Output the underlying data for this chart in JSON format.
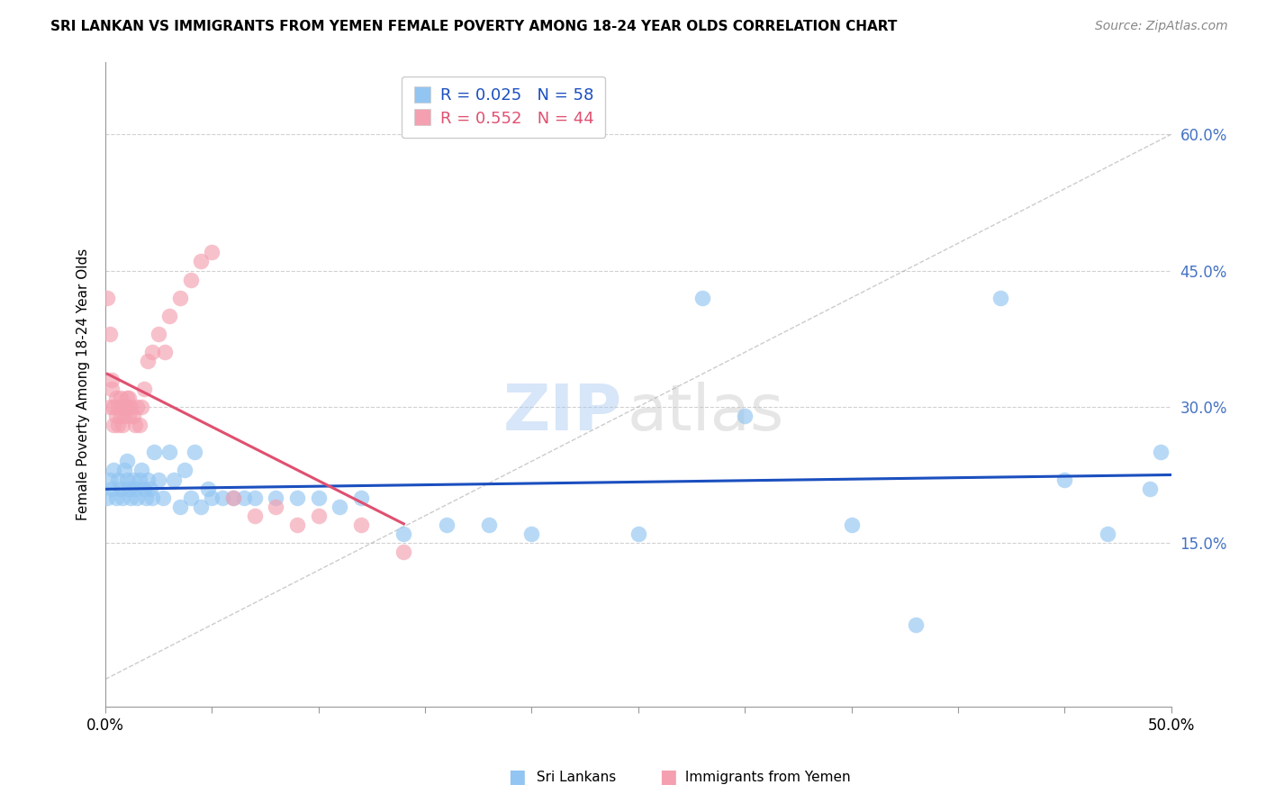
{
  "title": "SRI LANKAN VS IMMIGRANTS FROM YEMEN FEMALE POVERTY AMONG 18-24 YEAR OLDS CORRELATION CHART",
  "source": "Source: ZipAtlas.com",
  "ylabel": "Female Poverty Among 18-24 Year Olds",
  "ytick_labels": [
    "15.0%",
    "30.0%",
    "45.0%",
    "60.0%"
  ],
  "ytick_values": [
    0.15,
    0.3,
    0.45,
    0.6
  ],
  "xlim": [
    0.0,
    0.5
  ],
  "ylim": [
    -0.03,
    0.68
  ],
  "sri_lankans_color": "#92C5F2",
  "yemen_color": "#F4A0B0",
  "trendline_sri_color": "#1B4FBF",
  "trendline_yemen_color": "#E05070",
  "watermark_zip": "ZIP",
  "watermark_atlas": "atlas",
  "sri_R": "0.025",
  "sri_N": "58",
  "yemen_R": "0.552",
  "yemen_N": "44",
  "sri_lankans_x": [
    0.001,
    0.002,
    0.003,
    0.004,
    0.005,
    0.006,
    0.007,
    0.008,
    0.009,
    0.01,
    0.01,
    0.011,
    0.012,
    0.013,
    0.014,
    0.015,
    0.016,
    0.017,
    0.018,
    0.019,
    0.02,
    0.021,
    0.022,
    0.023,
    0.025,
    0.027,
    0.03,
    0.032,
    0.035,
    0.037,
    0.04,
    0.042,
    0.045,
    0.048,
    0.05,
    0.055,
    0.06,
    0.065,
    0.07,
    0.08,
    0.09,
    0.1,
    0.11,
    0.12,
    0.14,
    0.16,
    0.18,
    0.2,
    0.25,
    0.28,
    0.3,
    0.35,
    0.38,
    0.42,
    0.45,
    0.47,
    0.49,
    0.495
  ],
  "sri_lankans_y": [
    0.2,
    0.22,
    0.21,
    0.23,
    0.2,
    0.22,
    0.21,
    0.2,
    0.23,
    0.22,
    0.24,
    0.21,
    0.2,
    0.22,
    0.21,
    0.2,
    0.22,
    0.23,
    0.21,
    0.2,
    0.22,
    0.21,
    0.2,
    0.25,
    0.22,
    0.2,
    0.25,
    0.22,
    0.19,
    0.23,
    0.2,
    0.25,
    0.19,
    0.21,
    0.2,
    0.2,
    0.2,
    0.2,
    0.2,
    0.2,
    0.2,
    0.2,
    0.19,
    0.2,
    0.16,
    0.17,
    0.17,
    0.16,
    0.16,
    0.42,
    0.29,
    0.17,
    0.06,
    0.42,
    0.22,
    0.16,
    0.21,
    0.25
  ],
  "yemen_x": [
    0.001,
    0.002,
    0.002,
    0.003,
    0.003,
    0.004,
    0.004,
    0.005,
    0.005,
    0.006,
    0.006,
    0.007,
    0.007,
    0.008,
    0.008,
    0.009,
    0.009,
    0.01,
    0.01,
    0.011,
    0.011,
    0.012,
    0.013,
    0.014,
    0.015,
    0.016,
    0.017,
    0.018,
    0.02,
    0.022,
    0.025,
    0.028,
    0.03,
    0.035,
    0.04,
    0.045,
    0.05,
    0.06,
    0.07,
    0.08,
    0.09,
    0.1,
    0.12,
    0.14
  ],
  "yemen_y": [
    0.42,
    0.38,
    0.3,
    0.33,
    0.32,
    0.3,
    0.28,
    0.31,
    0.29,
    0.3,
    0.28,
    0.31,
    0.29,
    0.3,
    0.28,
    0.3,
    0.29,
    0.31,
    0.3,
    0.29,
    0.31,
    0.3,
    0.29,
    0.28,
    0.3,
    0.28,
    0.3,
    0.32,
    0.35,
    0.36,
    0.38,
    0.36,
    0.4,
    0.42,
    0.44,
    0.46,
    0.47,
    0.2,
    0.18,
    0.19,
    0.17,
    0.18,
    0.17,
    0.14
  ]
}
